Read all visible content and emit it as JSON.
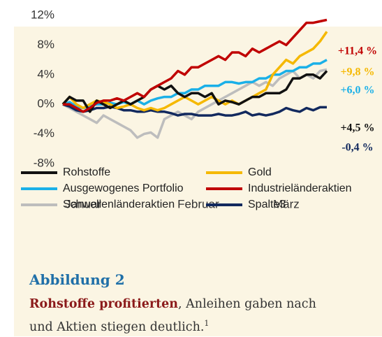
{
  "chart_data": {
    "type": "line",
    "xlim": [
      0,
      39
    ],
    "xticks": [
      {
        "value": 3,
        "label": "Januar"
      },
      {
        "value": 20,
        "label": "Februar"
      },
      {
        "value": 33,
        "label": "März"
      }
    ],
    "ylim": [
      -8,
      12
    ],
    "yticks": [
      {
        "value": -8,
        "label": "-8%"
      },
      {
        "value": -4,
        "label": "-4%"
      },
      {
        "value": 0,
        "label": "0%"
      },
      {
        "value": 4,
        "label": "4%"
      },
      {
        "value": 8,
        "label": "8%"
      },
      {
        "value": 12,
        "label": "12%"
      }
    ],
    "series": [
      {
        "name": "Rohstoffe",
        "color": "#111111",
        "values": [
          0,
          1,
          0.5,
          0.5,
          -1,
          0.5,
          0,
          -0.5,
          0,
          0.5,
          0,
          0.5,
          1,
          2,
          2.5,
          2,
          2.5,
          1.5,
          1,
          1.5,
          1.5,
          1,
          1.5,
          0,
          0.5,
          0.3,
          0,
          0.5,
          1,
          1,
          1.5,
          1.5,
          1.5,
          2,
          3.5,
          3.5,
          4,
          4,
          3.5,
          4.5
        ]
      },
      {
        "name": "Gold",
        "color": "#f5b800",
        "values": [
          0,
          1,
          0,
          -0.5,
          0,
          0.5,
          0.3,
          0,
          -0.5,
          -0.3,
          0,
          -0.5,
          -0.8,
          -0.5,
          -0.8,
          -0.5,
          0,
          0.5,
          1,
          0.5,
          0,
          0.5,
          1,
          0.5,
          0,
          0.5,
          0,
          0.5,
          1,
          1.5,
          2,
          4,
          5,
          6,
          5.5,
          6.5,
          7,
          7.5,
          8.5,
          9.8
        ]
      },
      {
        "name": "Ausgewogenes Portfolio",
        "color": "#1ab0e8",
        "values": [
          0,
          0.3,
          -0.3,
          -0.5,
          -0.3,
          0,
          0,
          0.2,
          0,
          0.3,
          0,
          0.5,
          0,
          0.5,
          0.8,
          1,
          1,
          1.5,
          1.5,
          2,
          2,
          2.5,
          2.5,
          2.5,
          3,
          3,
          2.8,
          3,
          3,
          3.5,
          3.5,
          4,
          4,
          4.5,
          4.5,
          5,
          5,
          5.5,
          5.5,
          6.0
        ]
      },
      {
        "name": "Industrieländeraktien",
        "color": "#c00000",
        "values": [
          0,
          0,
          -0.5,
          -1,
          -0.5,
          0.2,
          0.5,
          0.5,
          0.8,
          0.5,
          1,
          1.5,
          1,
          2,
          2.5,
          3,
          3.5,
          4.5,
          4,
          5,
          5,
          5.5,
          6,
          6.5,
          6,
          7,
          7,
          6.5,
          7.5,
          7,
          7.5,
          8,
          8.5,
          8,
          9,
          10,
          11,
          11,
          11.2,
          11.4
        ]
      },
      {
        "name": "Schwellenländeraktien",
        "color": "#bdbdbd",
        "values": [
          0,
          -0.5,
          -1,
          -1.5,
          -2,
          -2.5,
          -1.5,
          -2,
          -2.5,
          -3,
          -3.5,
          -4.5,
          -4,
          -3.8,
          -4.5,
          -2,
          -1.5,
          -1,
          -1.5,
          -2,
          -1,
          -0.5,
          0,
          0.5,
          1,
          1.5,
          2,
          2.5,
          3,
          2.5,
          3,
          2.5,
          3.5,
          4,
          4.5,
          3.5,
          4,
          3.5,
          4.5,
          4.7
        ]
      },
      {
        "name": "Spalte3",
        "color": "#12295e",
        "values": [
          0,
          -0.3,
          -0.8,
          -1,
          -0.8,
          -0.5,
          -0.5,
          -0.3,
          -0.5,
          -0.8,
          -0.8,
          -1,
          -1,
          -0.8,
          -1,
          -1,
          -1.2,
          -1.5,
          -1.3,
          -1.3,
          -1.5,
          -1.5,
          -1.5,
          -1.3,
          -1.5,
          -1.5,
          -1.3,
          -1,
          -1.5,
          -1.3,
          -1.5,
          -1.3,
          -1,
          -0.5,
          -0.8,
          -1,
          -0.5,
          -0.8,
          -0.4,
          -0.4
        ]
      }
    ],
    "annotations": [
      {
        "text": "+11,4 %",
        "color": "#c00000"
      },
      {
        "text": "+9,8 %",
        "color": "#f5b800"
      },
      {
        "text": "+6,0 %",
        "color": "#1ab0e8"
      },
      {
        "text": "+4,5 %",
        "color": "#111111"
      },
      {
        "text": "-0,4 %",
        "color": "#12295e"
      }
    ]
  },
  "caption": {
    "figure": "Abbildung 2",
    "lead": "Rohstoffe profitierten",
    "line1": ", Anleihen gaben nach",
    "line2": "und Aktien stiegen deutlich.",
    "footnote": "1"
  }
}
